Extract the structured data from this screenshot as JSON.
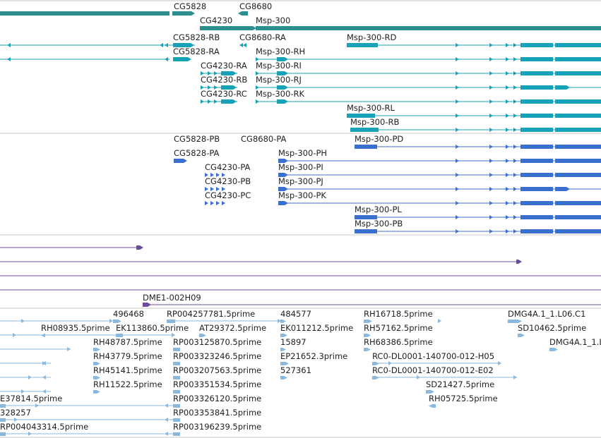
{
  "colors": {
    "gene": "#2c8f8e",
    "transcript": "#17a2b8",
    "protein": "#3a6fd0",
    "alignment": "#6a4c9c",
    "est": "#8ab9dd",
    "divider": "#c8c8c8",
    "text": "#222222"
  },
  "tracks": {
    "genes": {
      "labels": [
        "CG5828",
        "CG8680",
        "CG4230",
        "Msp-300"
      ]
    },
    "transcripts": {
      "labels": [
        "CG5828-RB",
        "CG8680-RA",
        "Msp-300-RD",
        "CG5828-RA",
        "Msp-300-RH",
        "CG4230-RA",
        "Msp-300-RI",
        "CG4230-RB",
        "Msp-300-RJ",
        "CG4230-RC",
        "Msp-300-RK",
        "Msp-300-RL",
        "Msp-300-RB"
      ]
    },
    "proteins": {
      "labels": [
        "CG5828-PB",
        "CG8680-PA",
        "Msp-300-PD",
        "CG5828-PA",
        "Msp-300-PH",
        "CG4230-PA",
        "Msp-300-PI",
        "CG4230-PB",
        "Msp-300-PJ",
        "CG4230-PC",
        "Msp-300-PK",
        "Msp-300-PL",
        "Msp-300-PB"
      ]
    },
    "alignments": {
      "labels": [
        "DME1-002H09"
      ]
    },
    "ests": {
      "labels": [
        "496468",
        "RP004257781.5prime",
        "484577",
        "RH16718.5prime",
        "DMG4A.1_1.L06.C1",
        "RH08935.5prime",
        "EK113860.5prime",
        "AT29372.5prime",
        "EK011212.5prime",
        "RH57162.5prime",
        "SD10462.5prime",
        "RH48787.5prime",
        "RP003125870.5prime",
        "15897",
        "RH68386.5prime",
        "DMG4A.1_1.L",
        "RH43779.5prime",
        "RP003323246.5prime",
        "EP21652.3prime",
        "RC0-DL0001-140700-012-H05",
        "RH45141.5prime",
        "RP003207563.5prime",
        "527361",
        "RC0-DL0001-140700-012-E02",
        "RH11522.5prime",
        "RP003351534.5prime",
        "SD21427.5prime",
        "E37814.5prime",
        "RP003326120.5prime",
        "RH05725.5prime",
        "328257",
        "RP003353841.5prime",
        "RP004043314.5prime",
        "RP003196239.5prime"
      ]
    }
  }
}
